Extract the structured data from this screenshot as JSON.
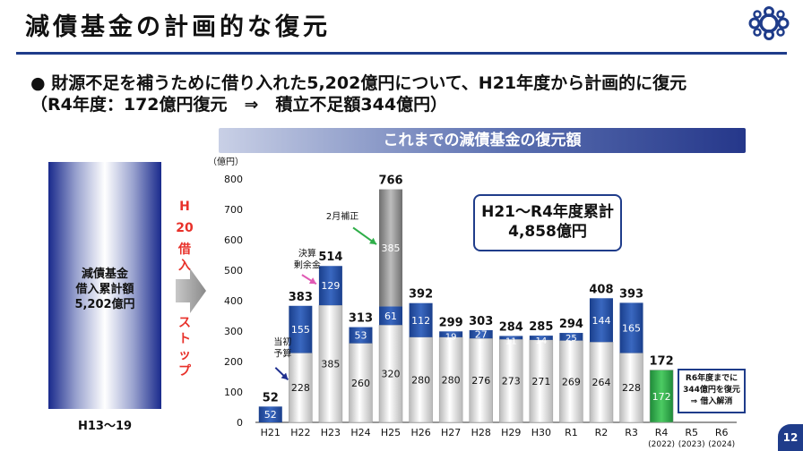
{
  "title": "減債基金の計画的な復元",
  "bullet": {
    "marker": "●",
    "line1": "財源不足を補うために借り入れた5,202億円について、H21年度から計画的に復元",
    "line2": "（R4年度：172億円復元　⇒　積立不足額344億円）"
  },
  "banner": "これまでの減債基金の復元額",
  "left_panel": {
    "line1": "減債基金",
    "line2": "借入累計額",
    "line3": "5,202億円",
    "years": "H13～19"
  },
  "stop_text": {
    "line1": "H",
    "line2": "20",
    "line3": "借",
    "line4": "入",
    "line5": "ス",
    "line6": "ト",
    "line7": "ッ",
    "line8": "プ"
  },
  "callout": {
    "line1": "H21～R4年度累計",
    "line2": "4,858億円"
  },
  "note": {
    "line1": "R6年度までに",
    "line2": "344億円を復元",
    "line3": "⇒ 借入解消"
  },
  "page_number": "12",
  "colors": {
    "title_rule": "#1f3c8a",
    "planned": "#ffffff",
    "supplemental": "#1f4e9c",
    "surplus": "#1f4e9c",
    "h25_budget": "#8c8c8c",
    "r4": "#2fae49",
    "annotation_green": "#2fae49",
    "annotation_pink": "#e05ab4",
    "annotation_navy": "#1f2f8f",
    "stop_red": "#e8312a"
  },
  "chart_data": {
    "type": "bar",
    "stacked": true,
    "ylabel": "（億円）",
    "ylim": [
      0,
      800
    ],
    "yticks": [
      0,
      100,
      200,
      300,
      400,
      500,
      600,
      700,
      800
    ],
    "categories": [
      "H21",
      "H22",
      "H23",
      "H24",
      "H25",
      "H26",
      "H27",
      "H28",
      "H29",
      "H30",
      "R1",
      "R2",
      "R3",
      "R4",
      "R5",
      "R6"
    ],
    "category_sublabels": [
      "",
      "",
      "",
      "",
      "",
      "",
      "",
      "",
      "",
      "",
      "",
      "",
      "",
      "(2022)",
      "(2023)",
      "(2024)"
    ],
    "lower_values": [
      null,
      228,
      385,
      260,
      320,
      280,
      280,
      276,
      273,
      271,
      269,
      264,
      228,
      172,
      null,
      null
    ],
    "upper_values": [
      52,
      155,
      129,
      53,
      61,
      112,
      19,
      27,
      11,
      14,
      25,
      144,
      165,
      null,
      null,
      null
    ],
    "top_values": [
      null,
      null,
      null,
      null,
      385,
      null,
      null,
      null,
      null,
      null,
      null,
      null,
      null,
      null,
      null,
      null
    ],
    "totals": [
      52,
      383,
      514,
      313,
      766,
      392,
      299,
      303,
      284,
      285,
      294,
      408,
      393,
      172,
      null,
      null
    ],
    "annotations": [
      {
        "text": "当初予算",
        "category": "H22",
        "part": "lower"
      },
      {
        "text": "決算剰余金",
        "category": "H23",
        "part": "upper"
      },
      {
        "text": "2月補正",
        "category": "H25",
        "part": "top"
      }
    ]
  }
}
